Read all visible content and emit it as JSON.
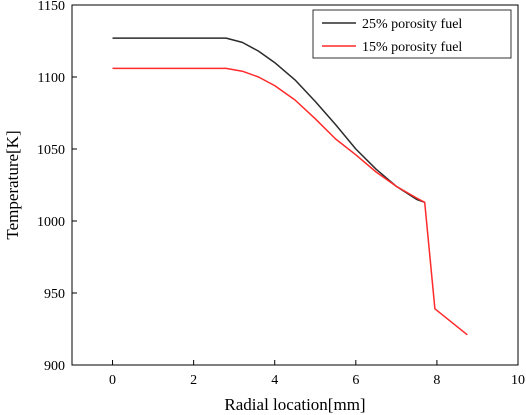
{
  "chart_data": {
    "type": "line",
    "title": "",
    "xlabel": "Radial location[mm]",
    "ylabel": "Temperature[K]",
    "xlim": [
      -1,
      10
    ],
    "ylim": [
      900,
      1150
    ],
    "xticks": [
      0,
      2,
      4,
      6,
      8,
      10
    ],
    "yticks": [
      900,
      950,
      1000,
      1050,
      1100,
      1150
    ],
    "grid": false,
    "legend_position": "top-right",
    "series": [
      {
        "name": "25% porosity fuel",
        "color": "#2b2b2b",
        "x": [
          0,
          0.5,
          1,
          1.5,
          2,
          2.5,
          2.8,
          3.2,
          3.6,
          4,
          4.5,
          5,
          5.5,
          6,
          6.5,
          7,
          7.5,
          7.7
        ],
        "y": [
          1127,
          1127,
          1127,
          1127,
          1127,
          1127,
          1127,
          1124,
          1118,
          1110,
          1098,
          1083,
          1067,
          1050,
          1036,
          1024,
          1015,
          1013
        ]
      },
      {
        "name": "15% porosity fuel",
        "color": "#ff2a2a",
        "x": [
          0,
          0.5,
          1,
          1.5,
          2,
          2.5,
          2.8,
          3.2,
          3.6,
          4,
          4.5,
          5,
          5.5,
          6,
          6.5,
          7,
          7.5,
          7.7,
          7.95,
          8.75
        ],
        "y": [
          1106,
          1106,
          1106,
          1106,
          1106,
          1106,
          1106,
          1104,
          1100,
          1094,
          1084,
          1071,
          1057,
          1046,
          1034,
          1024,
          1016,
          1013,
          939,
          921
        ]
      }
    ]
  }
}
